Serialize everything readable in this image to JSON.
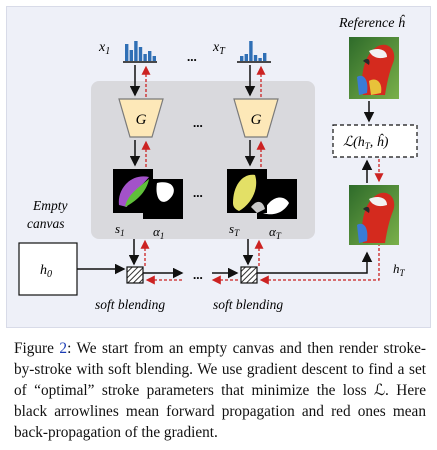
{
  "figure": {
    "labels": {
      "x1": "x",
      "x1_sub": "1",
      "xT": "x",
      "xT_sub": "T",
      "dots": "...",
      "generator": "G",
      "reference": "Reference ĥ",
      "loss": "ℒ(h",
      "loss_sub": "T",
      "loss_tail": ", ĥ)",
      "empty_canvas_line1": "Empty",
      "empty_canvas_line2": "canvas",
      "h0": "h",
      "h0_sub": "0",
      "hT": "h",
      "hT_sub": "T",
      "s1": "s",
      "s1_sub": "1",
      "alpha1": "α",
      "alpha1_sub": "1",
      "sT": "s",
      "sT_sub": "T",
      "alphaT": "α",
      "alphaT_sub": "T",
      "soft_blending": "soft blending"
    },
    "colors": {
      "panel_bg": "#eef0f8",
      "inner_box": "#d9d9dd",
      "generator_fill": "#fde8b8",
      "generator_stroke": "#7a7a7a",
      "forward_arrow": "#111111",
      "backprop_arrow": "#cc2222",
      "histogram_bar": "#2f6fb5",
      "link_text": "#1a3cb5"
    },
    "histogram_heights": {
      "x1": [
        0.85,
        0.55,
        1.0,
        0.7,
        0.35,
        0.5,
        0.25
      ],
      "xT": [
        0.25,
        0.35,
        1.0,
        0.3,
        0.15,
        0.4
      ]
    }
  },
  "caption": {
    "prefix": "Figure ",
    "number": "2",
    "text": ": We start from an empty canvas and then render stroke-by-stroke with soft blending. We use gradient descent to find a set of “optimal” stroke parameters that minimize the loss ℒ. Here black arrowlines mean forward propagation and red ones mean back-propagation of the gradient."
  }
}
